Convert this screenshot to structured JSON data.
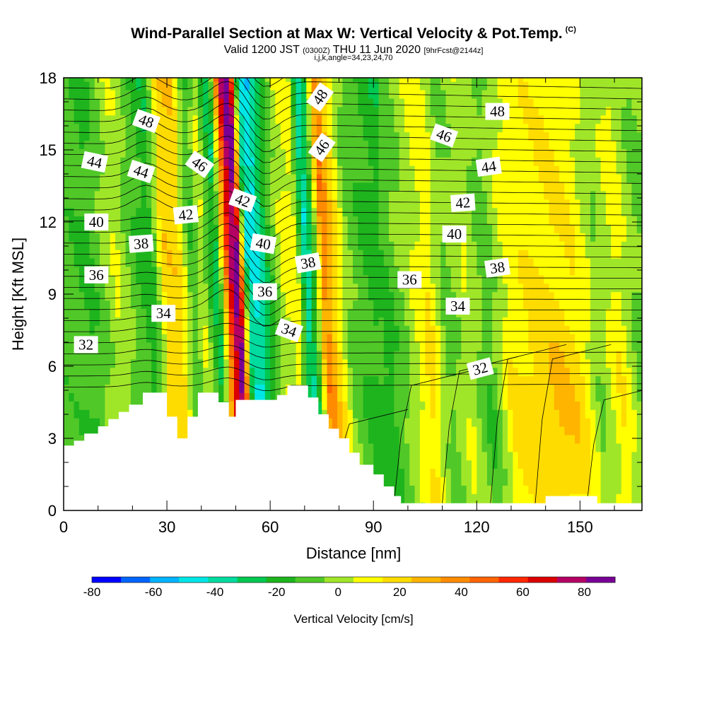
{
  "header": {
    "title": "Wind-Parallel Section at Max W: Vertical Velocity & Pot.Temp.",
    "copyright_mark": "(C)",
    "valid_prefix": "Valid 1200 JST",
    "valid_utc": "(0300Z)",
    "valid_date": "THU 11 Jun 2020",
    "forecast_tag": "[9hrFcst@2144z]",
    "indices": "i,j,k,angle=34,23,24,70"
  },
  "chart_data": {
    "type": "heatmap",
    "xlabel": "Distance [nm]",
    "ylabel": "Height [Kft MSL]",
    "xlim": [
      0,
      168
    ],
    "ylim": [
      0,
      18
    ],
    "x_ticks": [
      0,
      30,
      60,
      90,
      120,
      150
    ],
    "y_ticks": [
      0,
      3,
      6,
      9,
      12,
      15,
      18
    ],
    "grid": false,
    "terrain_profile": {
      "x": [
        0,
        3,
        6,
        10,
        13,
        16,
        19,
        23,
        26,
        30,
        33,
        36,
        39,
        42,
        45,
        48,
        50,
        52,
        55,
        58,
        62,
        65,
        68,
        71,
        74,
        77,
        80,
        83,
        86,
        90,
        93,
        96,
        98,
        100,
        110,
        120,
        130,
        139,
        140,
        150,
        155,
        160,
        165,
        168
      ],
      "height": [
        2.7,
        2.9,
        3.2,
        3.5,
        3.8,
        4.1,
        4.4,
        4.9,
        4.9,
        3.9,
        3.0,
        3.9,
        4.9,
        4.9,
        4.5,
        3.9,
        4.6,
        4.6,
        4.6,
        4.6,
        4.8,
        5.2,
        5.2,
        4.7,
        4.0,
        3.4,
        3.0,
        2.4,
        1.9,
        1.5,
        1.0,
        0.6,
        0.3,
        0.3,
        0.3,
        0.3,
        0.3,
        0.3,
        0.6,
        0.6,
        0.3,
        0.3,
        0.3,
        0.3
      ]
    },
    "theta_contours": {
      "labels": [
        {
          "text": "48",
          "x": 24,
          "y": 16.2,
          "angle": 20
        },
        {
          "text": "44",
          "x": 9,
          "y": 14.5,
          "angle": 12
        },
        {
          "text": "44",
          "x": 22.5,
          "y": 14.1,
          "angle": 18
        },
        {
          "text": "46",
          "x": 39.5,
          "y": 14.4,
          "angle": 35
        },
        {
          "text": "40",
          "x": 9.5,
          "y": 12.0,
          "angle": 0
        },
        {
          "text": "42",
          "x": 35.5,
          "y": 12.3,
          "angle": -6
        },
        {
          "text": "42",
          "x": 52,
          "y": 12.9,
          "angle": 20
        },
        {
          "text": "38",
          "x": 22.5,
          "y": 11.1,
          "angle": -4
        },
        {
          "text": "40",
          "x": 58,
          "y": 11.1,
          "angle": 10
        },
        {
          "text": "36",
          "x": 9.5,
          "y": 9.8,
          "angle": 0
        },
        {
          "text": "38",
          "x": 71,
          "y": 10.3,
          "angle": -10
        },
        {
          "text": "36",
          "x": 58.5,
          "y": 9.1,
          "angle": 0
        },
        {
          "text": "34",
          "x": 29,
          "y": 8.2,
          "angle": 0
        },
        {
          "text": "34",
          "x": 65.5,
          "y": 7.5,
          "angle": 20
        },
        {
          "text": "32",
          "x": 6.5,
          "y": 6.9,
          "angle": 0
        },
        {
          "text": "48",
          "x": 74.5,
          "y": 17.2,
          "angle": -55
        },
        {
          "text": "46",
          "x": 75,
          "y": 15.1,
          "angle": -55
        },
        {
          "text": "48",
          "x": 126,
          "y": 16.6,
          "angle": 0
        },
        {
          "text": "46",
          "x": 110.5,
          "y": 15.6,
          "angle": 20
        },
        {
          "text": "44",
          "x": 123.5,
          "y": 14.3,
          "angle": -8
        },
        {
          "text": "42",
          "x": 116,
          "y": 12.8,
          "angle": -4
        },
        {
          "text": "40",
          "x": 113.5,
          "y": 11.5,
          "angle": 0
        },
        {
          "text": "38",
          "x": 126,
          "y": 10.1,
          "angle": -8
        },
        {
          "text": "36",
          "x": 100.5,
          "y": 9.6,
          "angle": 0
        },
        {
          "text": "34",
          "x": 114.5,
          "y": 8.5,
          "angle": 0
        },
        {
          "text": "32",
          "x": 121,
          "y": 5.9,
          "angle": -15
        }
      ]
    },
    "vertical_velocity_bands": [
      {
        "x": 2,
        "w": -10
      },
      {
        "x": 7,
        "w": -15
      },
      {
        "x": 15,
        "w": 5
      },
      {
        "x": 20,
        "w": -10
      },
      {
        "x": 25,
        "w": -20
      },
      {
        "x": 29,
        "w": 20
      },
      {
        "x": 33,
        "w": 20
      },
      {
        "x": 37,
        "w": -15
      },
      {
        "x": 40,
        "w": 5
      },
      {
        "x": 44,
        "w": -30
      },
      {
        "x": 47.5,
        "w": 60
      },
      {
        "x": 50,
        "w": 90
      },
      {
        "x": 53,
        "w": -40
      },
      {
        "x": 55.5,
        "w": -45
      },
      {
        "x": 59,
        "w": -20
      },
      {
        "x": 63,
        "w": 5
      },
      {
        "x": 67,
        "w": 10
      },
      {
        "x": 70,
        "w": -40
      },
      {
        "x": 72,
        "w": -20
      },
      {
        "x": 75,
        "w": 40
      },
      {
        "x": 78,
        "w": 20
      },
      {
        "x": 82,
        "w": -5
      },
      {
        "x": 88,
        "w": -15
      },
      {
        "x": 93,
        "w": -20
      },
      {
        "x": 98,
        "w": -5
      },
      {
        "x": 105,
        "w": 20
      },
      {
        "x": 110,
        "w": -10
      },
      {
        "x": 116,
        "w": 5
      },
      {
        "x": 122,
        "w": -15
      },
      {
        "x": 128,
        "w": 15
      },
      {
        "x": 135,
        "w": 20
      },
      {
        "x": 142,
        "w": 25
      },
      {
        "x": 148,
        "w": 20
      },
      {
        "x": 154,
        "w": -5
      },
      {
        "x": 160,
        "w": 15
      },
      {
        "x": 166,
        "w": -10
      }
    ]
  },
  "colorbar": {
    "title": "Vertical Velocity [cm/s]",
    "tick_labels": [
      "-80",
      "-60",
      "-40",
      "-20",
      "0",
      "20",
      "40",
      "60",
      "80"
    ],
    "tick_values": [
      -80,
      -60,
      -40,
      -20,
      0,
      20,
      40,
      60,
      80
    ],
    "range": [
      -80,
      90
    ],
    "colors": [
      "#0000ff",
      "#0064ff",
      "#00b4ff",
      "#00e6e6",
      "#00dca0",
      "#00c850",
      "#1eb41e",
      "#50c828",
      "#a0e628",
      "#ffff00",
      "#ffdc00",
      "#ffb400",
      "#ff8c00",
      "#ff6400",
      "#ff2800",
      "#dc0000",
      "#b40064",
      "#780096"
    ]
  }
}
